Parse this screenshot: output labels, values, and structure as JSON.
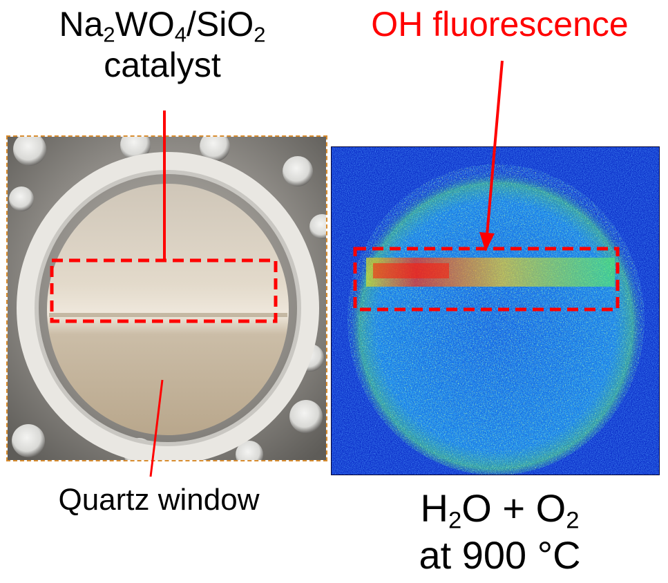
{
  "labels": {
    "catalyst": {
      "line1_prefix": "Na",
      "line1_sub1": "2",
      "line1_mid": "WO",
      "line1_sub2": "4",
      "line1_mid2": "/SiO",
      "line1_sub3": "2",
      "line2": "catalyst"
    },
    "oh_fluorescence": "OH fluorescence",
    "quartz_window": "Quartz window",
    "condition": {
      "line1_prefix": "H",
      "line1_sub1": "2",
      "line1_mid": "O + O",
      "line1_sub2": "2",
      "line2": "at 900 °C"
    }
  },
  "colors": {
    "callout_red": "#ff0000",
    "photo_border": "#d88c2e"
  }
}
